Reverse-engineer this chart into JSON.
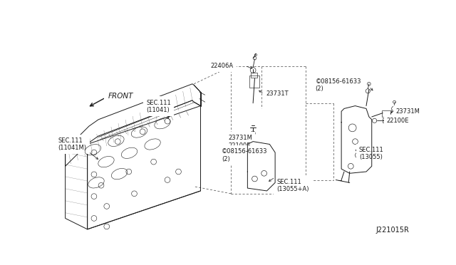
{
  "bg_color": "#ffffff",
  "diagram_id": "J221015R",
  "lc": "#1a1a1a",
  "front_text": "FRONT",
  "labels": {
    "sec111_11041M": "SEC.111\n(11041M)",
    "sec111_11041": "SEC.111\n(11041)",
    "part_22406A": "22406A",
    "part_23731T": "23731T",
    "part_23731M_mid": "23731M",
    "part_22100E_mid": "22100E",
    "part_08156_mid": "©08156-61633\n(2)",
    "sec111_13055A": "SEC.111\n(13055+A)",
    "part_08156_right": "©08156-61633\n(2)",
    "part_23731M_right": "23731M",
    "part_22100E_right": "22100E",
    "sec111_13055": "SEC.111\n(13055)"
  },
  "fs": 6.0
}
